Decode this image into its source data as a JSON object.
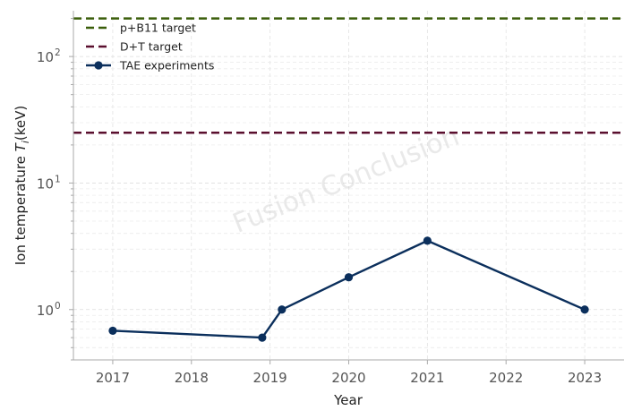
{
  "chart_data": {
    "type": "line",
    "title": "",
    "xlabel": "Year",
    "ylabel": "Ion temperature",
    "ylabel_symbol": "T",
    "ylabel_subscript": "i",
    "ylabel_unit": "(keV)",
    "yscale": "log",
    "xlim": [
      2016.5,
      2023.5
    ],
    "ylim": [
      0.4,
      230
    ],
    "grid": true,
    "legend_position": "top-left",
    "x_ticks": [
      {
        "value": 2017,
        "label": "2017"
      },
      {
        "value": 2018,
        "label": "2018"
      },
      {
        "value": 2019,
        "label": "2019"
      },
      {
        "value": 2020,
        "label": "2020"
      },
      {
        "value": 2021,
        "label": "2021"
      },
      {
        "value": 2022,
        "label": "2022"
      },
      {
        "value": 2023,
        "label": "2023"
      }
    ],
    "y_ticks": [
      {
        "value": 1,
        "base": "10",
        "exp": "0"
      },
      {
        "value": 10,
        "base": "10",
        "exp": "1"
      },
      {
        "value": 100,
        "base": "10",
        "exp": "2"
      }
    ],
    "reference_lines": [
      {
        "name": "p+B11 target",
        "value": 200,
        "color": "#3a5e0a",
        "style": "dashed"
      },
      {
        "name": "D+T target",
        "value": 25,
        "color": "#5a0f2e",
        "style": "dashed"
      }
    ],
    "series": [
      {
        "name": "TAE experiments",
        "color": "#0b2f5c",
        "marker": "circle",
        "points": [
          {
            "x": 2017.0,
            "y": 0.68
          },
          {
            "x": 2018.9,
            "y": 0.6
          },
          {
            "x": 2019.15,
            "y": 1.0
          },
          {
            "x": 2020.0,
            "y": 1.8
          },
          {
            "x": 2021.0,
            "y": 3.5
          },
          {
            "x": 2023.0,
            "y": 1.0
          }
        ]
      }
    ],
    "watermark": "Fusion Conclusion"
  }
}
